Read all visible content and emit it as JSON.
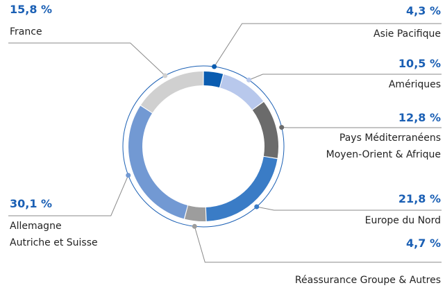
{
  "chart_data": {
    "type": "donut",
    "categories": [
      "Asie Pacifique",
      "Amériques",
      "Pays Méditerranéens\nMoyen-Orient & Afrique",
      "Europe du Nord",
      "Réassurance Groupe & Autres",
      "Allemagne\nAutriche et Suisse",
      "France"
    ],
    "values": [
      4.3,
      10.5,
      12.8,
      21.8,
      4.7,
      30.1,
      15.8
    ],
    "value_labels": [
      "4,3 %",
      "10,5 %",
      "12,8 %",
      "21,8 %",
      "4,7 %",
      "30,1 %",
      "15,8 %"
    ],
    "colors": [
      "#0a5cb0",
      "#b8c8ec",
      "#6b6b6b",
      "#3a7cc6",
      "#9d9d9d",
      "#7299d3",
      "#d0d0d0"
    ]
  }
}
